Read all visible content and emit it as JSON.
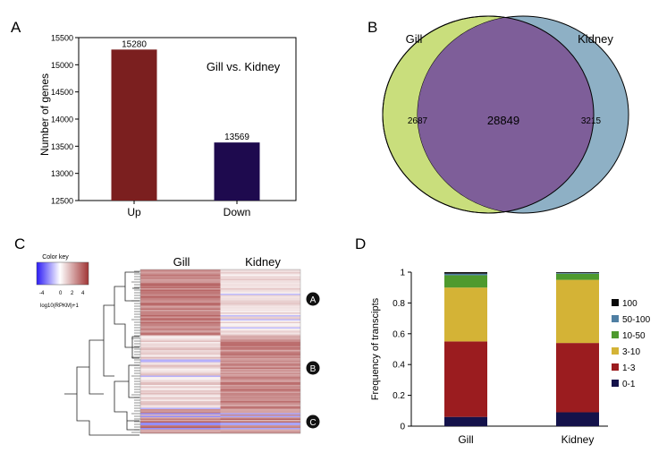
{
  "panels": {
    "a": {
      "letter": "A"
    },
    "b": {
      "letter": "B"
    },
    "c": {
      "letter": "C"
    },
    "d": {
      "letter": "D"
    }
  },
  "colors": {
    "up": "#7b1f1f",
    "down": "#1e0a4e",
    "gill_only": "#c9de7c",
    "kidney_only": "#8eb0c5",
    "overlap": "#7e5e99",
    "heat_low": "#2b1bf5",
    "heat_mid": "#ffffff",
    "heat_high": "#a13535"
  },
  "chart_data": [
    {
      "panel": "A",
      "type": "bar",
      "title": "Gill vs. Kidney",
      "ylabel": "Number of genes",
      "xlabel": "",
      "categories": [
        "Up",
        "Down"
      ],
      "values": [
        15280,
        13569
      ],
      "data_labels": [
        "15280",
        "13569"
      ],
      "ylim": [
        12500,
        15500
      ],
      "yticks": [
        12500,
        13000,
        13500,
        14000,
        14500,
        15000,
        15500
      ],
      "ytick_labels": [
        "12500",
        "13000",
        "13500",
        "14000",
        "14500",
        "15000",
        "15500"
      ]
    },
    {
      "panel": "B",
      "type": "venn",
      "sets": [
        "Gill",
        "Kidney"
      ],
      "only_left": 2687,
      "overlap": 28849,
      "only_right": 3215,
      "labels": {
        "only_left": "2687",
        "overlap": "28849",
        "only_right": "3215"
      }
    },
    {
      "panel": "C",
      "type": "heatmap",
      "columns": [
        "Gill",
        "Kidney"
      ],
      "color_key": {
        "title": "Color key",
        "tick_labels": [
          "-4",
          "0",
          "2",
          "4"
        ],
        "scale_label": "log10(RPKM)+1"
      },
      "clusters": [
        "A",
        "B",
        "C"
      ]
    },
    {
      "panel": "D",
      "type": "bar",
      "stacked": true,
      "ylabel": "Frequency of transcipts",
      "categories": [
        "Gill",
        "Kidney"
      ],
      "ylim": [
        0,
        1
      ],
      "yticks": [
        0,
        0.2,
        0.4,
        0.6,
        0.8,
        1
      ],
      "ytick_labels": [
        "0",
        "0.2",
        "0.4",
        "0.6",
        "0.8",
        "1"
      ],
      "series": [
        {
          "name": "0-1",
          "color": "#14124a",
          "values": [
            0.06,
            0.09
          ]
        },
        {
          "name": "1-3",
          "color": "#9b1c1f",
          "values": [
            0.49,
            0.45
          ]
        },
        {
          "name": "3-10",
          "color": "#d4b336",
          "values": [
            0.35,
            0.41
          ]
        },
        {
          "name": "10-50",
          "color": "#4e9a2e",
          "values": [
            0.08,
            0.04
          ]
        },
        {
          "name": "50-100",
          "color": "#4f7fa3",
          "values": [
            0.01,
            0.005
          ]
        },
        {
          "name": "100",
          "color": "#0a0a0a",
          "values": [
            0.01,
            0.005
          ]
        }
      ],
      "legend_order": [
        "100",
        "50-100",
        "10-50",
        "3-10",
        "1-3",
        "0-1"
      ]
    }
  ]
}
